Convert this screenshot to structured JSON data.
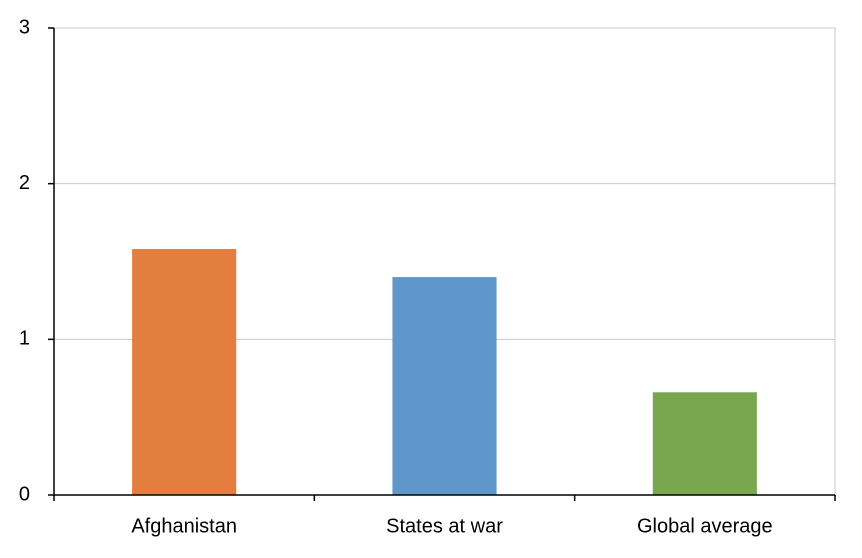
{
  "chart_data": {
    "type": "bar",
    "categories": [
      "Afghanistan",
      "States at war",
      "Global average"
    ],
    "values": [
      1.58,
      1.4,
      0.66
    ],
    "colors": [
      "#e47e40",
      "#5f97cb",
      "#78a750"
    ],
    "ylim": [
      0,
      3
    ],
    "yticks": [
      0,
      1,
      2,
      3
    ],
    "grid": true
  }
}
